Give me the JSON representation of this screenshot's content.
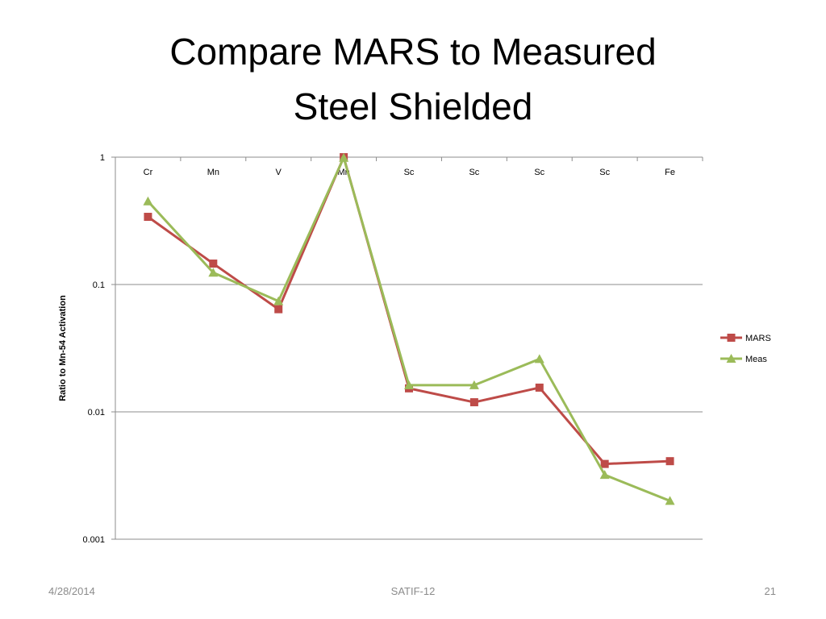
{
  "chart_data": {
    "type": "line",
    "title": [
      "Compare MARS to Measured",
      "Steel Shielded"
    ],
    "y_label": "Ratio to Mn-54 Activation",
    "categories": [
      "Cr",
      "Mn",
      "V",
      "Mn",
      "Sc",
      "Sc",
      "Sc",
      "Sc",
      "Fe"
    ],
    "series": [
      {
        "name": "MARS",
        "color": "#be4b48",
        "marker": "square",
        "values": [
          0.34,
          0.146,
          0.064,
          1,
          0.0153,
          0.0119,
          0.0155,
          0.0039,
          0.0041
        ]
      },
      {
        "name": "Meas",
        "color": "#9bbb59",
        "marker": "triangle",
        "values": [
          0.45,
          0.124,
          0.074,
          0.99,
          0.0162,
          0.0162,
          0.026,
          0.0032,
          0.002
        ]
      }
    ],
    "ylim": [
      0.001,
      1
    ],
    "yticks": [
      0.001,
      0.01,
      0.1,
      1
    ],
    "log_y": true,
    "grid": true,
    "legend": "right"
  },
  "footer": {
    "date": "4/28/2014",
    "center": "SATIF-12",
    "page": "21"
  }
}
